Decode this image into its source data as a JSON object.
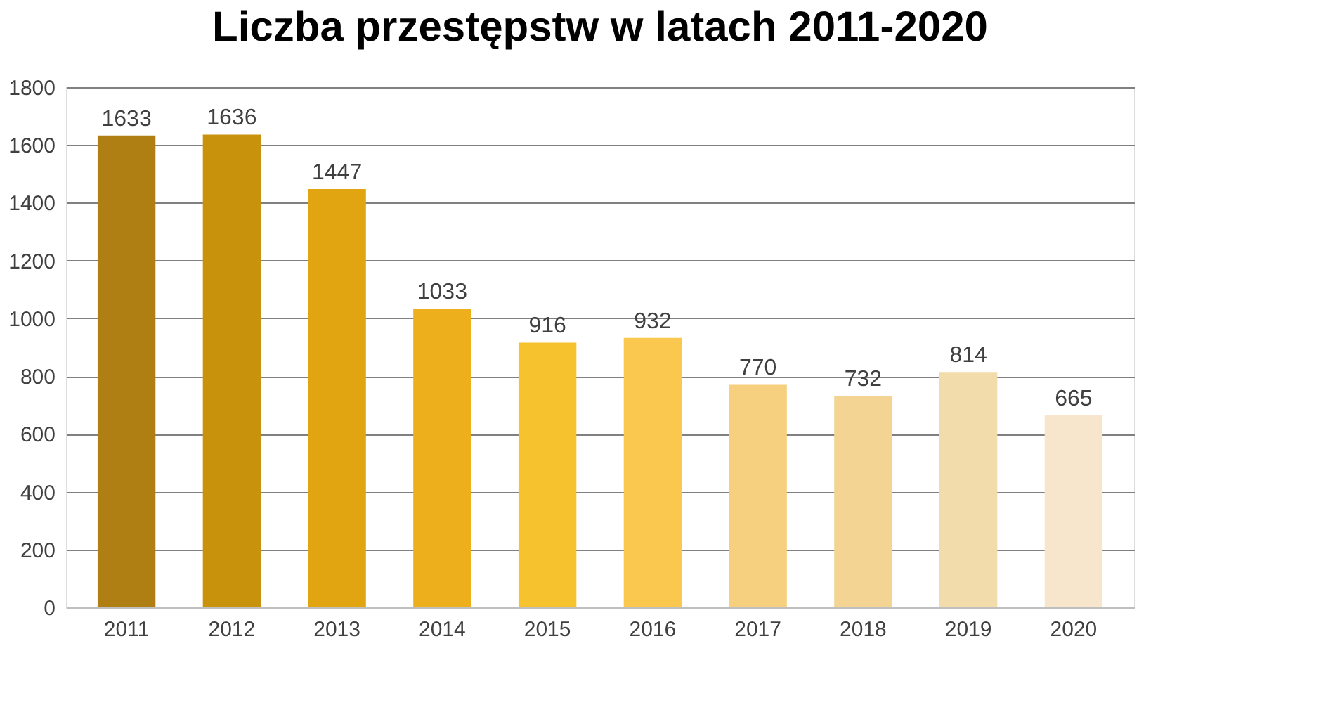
{
  "chart_data": {
    "type": "bar",
    "title": "Liczba przestępstw w latach 2011-2020",
    "categories": [
      "2011",
      "2012",
      "2013",
      "2014",
      "2015",
      "2016",
      "2017",
      "2018",
      "2019",
      "2020"
    ],
    "values": [
      1633,
      1636,
      1447,
      1033,
      916,
      932,
      770,
      732,
      814,
      665
    ],
    "colors": [
      "#b07f14",
      "#c9920c",
      "#e2a512",
      "#edb01c",
      "#f6c22e",
      "#fac84e",
      "#f6d07e",
      "#f3d493",
      "#f3dcab",
      "#f8e6cc"
    ],
    "ylim": [
      0,
      1800
    ],
    "yticks": [
      0,
      200,
      400,
      600,
      800,
      1000,
      1200,
      1400,
      1600,
      1800
    ],
    "grid": "y",
    "data_labels": true,
    "legend": false
  }
}
